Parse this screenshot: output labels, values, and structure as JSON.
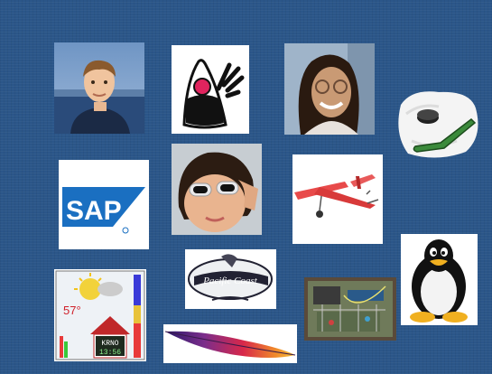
{
  "tiles": {
    "sap_logo_text": "SAP",
    "krno_label": "KRNO",
    "krno_time": "13:56",
    "temperature": "57°",
    "pacific_coast_text": "Pacific Coast"
  },
  "colors": {
    "background": "#2b5689",
    "sap_blue": "#1a6fc1",
    "duke_red": "#e0245e",
    "apache_purple": "#7b2d8b"
  }
}
